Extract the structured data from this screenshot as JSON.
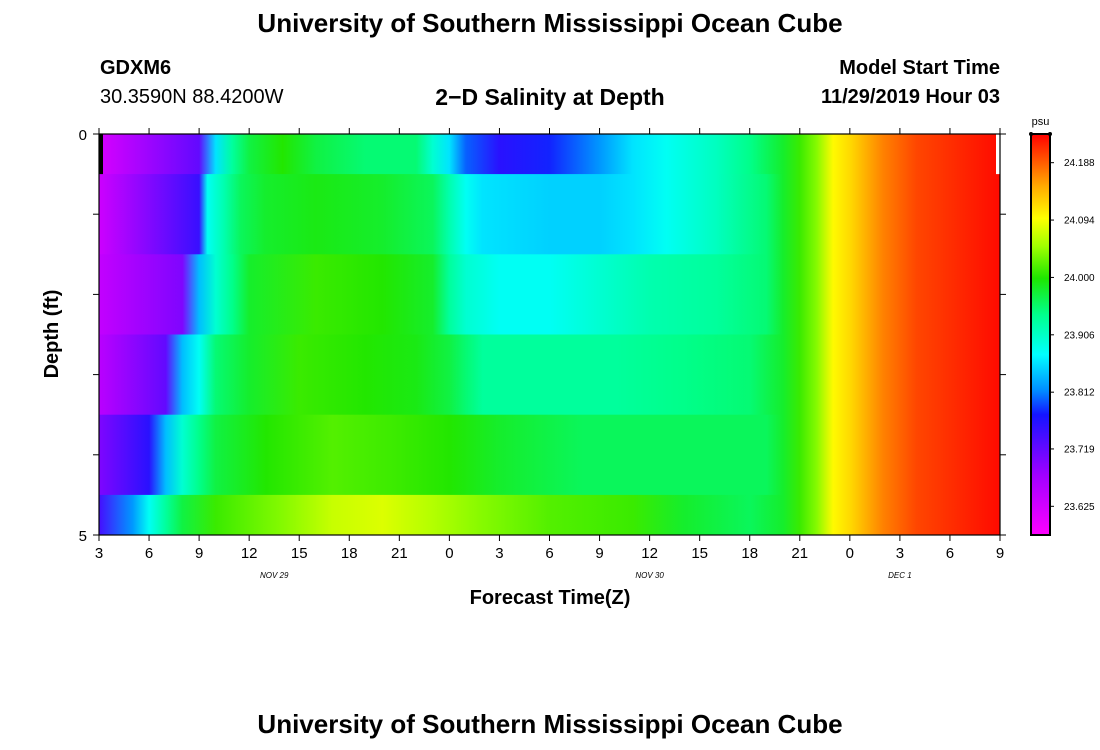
{
  "header": {
    "title": "University of Southern Mississippi Ocean Cube",
    "station_id": "GDXM6",
    "station_location": "30.3590N 88.4200W",
    "model_start_label": "Model Start Time",
    "model_start_value": "11/29/2019 Hour 03"
  },
  "footer": {
    "title": "University of Southern Mississippi Ocean Cube"
  },
  "chart_data": {
    "type": "heatmap",
    "title": "2−D Salinity at Depth",
    "xlabel": "Forecast Time(Z)",
    "ylabel": "Depth (ft)",
    "x_tick_labels": [
      "3",
      "6",
      "9",
      "12",
      "15",
      "18",
      "21",
      "0",
      "3",
      "6",
      "9",
      "12",
      "15",
      "18",
      "21",
      "0",
      "3",
      "6",
      "9"
    ],
    "x_hours": [
      3,
      6,
      9,
      12,
      15,
      18,
      21,
      24,
      27,
      30,
      33,
      36,
      39,
      42,
      45,
      48,
      51,
      54,
      57
    ],
    "x_range_hours": [
      3,
      57
    ],
    "date_labels": [
      {
        "text": "NOV 29",
        "hour": 13.5
      },
      {
        "text": "NOV 30",
        "hour": 36
      },
      {
        "text": "DEC 1",
        "hour": 51
      }
    ],
    "y_tick_labels": [
      "0",
      "5"
    ],
    "y_range": [
      0,
      5
    ],
    "colorbar": {
      "unit": "psu",
      "labels": [
        "24.188",
        "24.094",
        "24.000",
        "23.906",
        "23.812",
        "23.719",
        "23.625"
      ],
      "range": [
        23.578,
        24.235
      ]
    },
    "depth_bands_ft": [
      [
        0,
        0.5
      ],
      [
        0.5,
        1.5
      ],
      [
        1.5,
        2.5
      ],
      [
        2.5,
        3.5
      ],
      [
        3.5,
        4.5
      ],
      [
        4.5,
        5
      ]
    ],
    "layers": [
      {
        "depth": 0.25,
        "points": [
          [
            3,
            23.62
          ],
          [
            9,
            23.72
          ],
          [
            10,
            23.86
          ],
          [
            11,
            23.93
          ],
          [
            12,
            23.97
          ],
          [
            14,
            24.0
          ],
          [
            16,
            23.97
          ],
          [
            19,
            23.95
          ],
          [
            22,
            23.95
          ],
          [
            23,
            23.9
          ],
          [
            24,
            23.86
          ],
          [
            25,
            23.8
          ],
          [
            27,
            23.76
          ],
          [
            30,
            23.78
          ],
          [
            33,
            23.82
          ],
          [
            35,
            23.86
          ],
          [
            37,
            23.88
          ],
          [
            40,
            23.91
          ],
          [
            42,
            23.94
          ],
          [
            43,
            23.96
          ],
          [
            44,
            23.98
          ],
          [
            45,
            24.01
          ],
          [
            46,
            24.04
          ],
          [
            47,
            24.1
          ],
          [
            48,
            24.12
          ],
          [
            50,
            24.17
          ],
          [
            52,
            24.2
          ],
          [
            57,
            24.23
          ]
        ]
      },
      {
        "depth": 1.0,
        "points": [
          [
            3,
            23.63
          ],
          [
            9,
            23.75
          ],
          [
            9.5,
            23.88
          ],
          [
            10.5,
            23.92
          ],
          [
            11.5,
            23.96
          ],
          [
            13,
            23.98
          ],
          [
            16,
            23.99
          ],
          [
            20,
            23.98
          ],
          [
            23,
            23.96
          ],
          [
            24,
            23.92
          ],
          [
            25,
            23.88
          ],
          [
            26,
            23.86
          ],
          [
            30,
            23.85
          ],
          [
            33,
            23.85
          ],
          [
            35,
            23.86
          ],
          [
            37,
            23.88
          ],
          [
            40,
            23.91
          ],
          [
            43,
            23.95
          ],
          [
            44,
            23.98
          ],
          [
            45,
            24.01
          ],
          [
            46,
            24.04
          ],
          [
            47,
            24.1
          ],
          [
            48,
            24.12
          ],
          [
            50,
            24.17
          ],
          [
            52,
            24.2
          ],
          [
            57,
            24.23
          ]
        ]
      },
      {
        "depth": 2.0,
        "points": [
          [
            3,
            23.64
          ],
          [
            8,
            23.7
          ],
          [
            9,
            23.84
          ],
          [
            10,
            23.9
          ],
          [
            11,
            23.94
          ],
          [
            12,
            23.98
          ],
          [
            16,
            24.01
          ],
          [
            20,
            24.0
          ],
          [
            23,
            23.98
          ],
          [
            24,
            23.93
          ],
          [
            25,
            23.9
          ],
          [
            27,
            23.88
          ],
          [
            30,
            23.88
          ],
          [
            33,
            23.9
          ],
          [
            36,
            23.92
          ],
          [
            40,
            23.93
          ],
          [
            43,
            23.95
          ],
          [
            44,
            23.98
          ],
          [
            45,
            24.01
          ],
          [
            46,
            24.04
          ],
          [
            47,
            24.1
          ],
          [
            48,
            24.12
          ],
          [
            50,
            24.17
          ],
          [
            52,
            24.2
          ],
          [
            57,
            24.23
          ]
        ]
      },
      {
        "depth": 3.0,
        "points": [
          [
            3,
            23.65
          ],
          [
            7,
            23.72
          ],
          [
            8,
            23.84
          ],
          [
            9,
            23.88
          ],
          [
            10,
            23.95
          ],
          [
            12,
            23.98
          ],
          [
            15,
            24.01
          ],
          [
            19,
            24.0
          ],
          [
            22,
            23.99
          ],
          [
            24,
            23.97
          ],
          [
            25,
            23.95
          ],
          [
            26,
            23.93
          ],
          [
            28,
            23.93
          ],
          [
            34,
            23.93
          ],
          [
            38,
            23.94
          ],
          [
            42,
            23.95
          ],
          [
            44,
            23.98
          ],
          [
            45,
            24.01
          ],
          [
            46,
            24.04
          ],
          [
            47,
            24.1
          ],
          [
            48,
            24.12
          ],
          [
            50,
            24.17
          ],
          [
            52,
            24.2
          ],
          [
            57,
            24.23
          ]
        ]
      },
      {
        "depth": 4.0,
        "points": [
          [
            3,
            23.7
          ],
          [
            6,
            23.76
          ],
          [
            7,
            23.84
          ],
          [
            8,
            23.9
          ],
          [
            9,
            23.94
          ],
          [
            10,
            23.97
          ],
          [
            13,
            24.0
          ],
          [
            17,
            24.02
          ],
          [
            21,
            24.01
          ],
          [
            24,
            24.0
          ],
          [
            27,
            23.98
          ],
          [
            32,
            23.96
          ],
          [
            38,
            23.96
          ],
          [
            43,
            23.96
          ],
          [
            44,
            23.98
          ],
          [
            45,
            24.01
          ],
          [
            46,
            24.04
          ],
          [
            47,
            24.1
          ],
          [
            48,
            24.12
          ],
          [
            50,
            24.17
          ],
          [
            52,
            24.2
          ],
          [
            57,
            24.23
          ]
        ]
      },
      {
        "depth": 4.75,
        "points": [
          [
            3,
            23.74
          ],
          [
            5,
            23.82
          ],
          [
            6,
            23.88
          ],
          [
            7,
            23.93
          ],
          [
            8,
            23.97
          ],
          [
            10,
            24.01
          ],
          [
            14,
            24.04
          ],
          [
            17,
            24.07
          ],
          [
            20,
            24.08
          ],
          [
            23,
            24.06
          ],
          [
            26,
            24.04
          ],
          [
            30,
            24.02
          ],
          [
            35,
            24.01
          ],
          [
            38,
            23.98
          ],
          [
            42,
            23.96
          ],
          [
            44,
            23.98
          ],
          [
            45,
            24.01
          ],
          [
            46,
            24.04
          ],
          [
            47,
            24.1
          ],
          [
            48,
            24.12
          ],
          [
            50,
            24.17
          ],
          [
            52,
            24.2
          ],
          [
            57,
            24.23
          ]
        ]
      }
    ]
  }
}
